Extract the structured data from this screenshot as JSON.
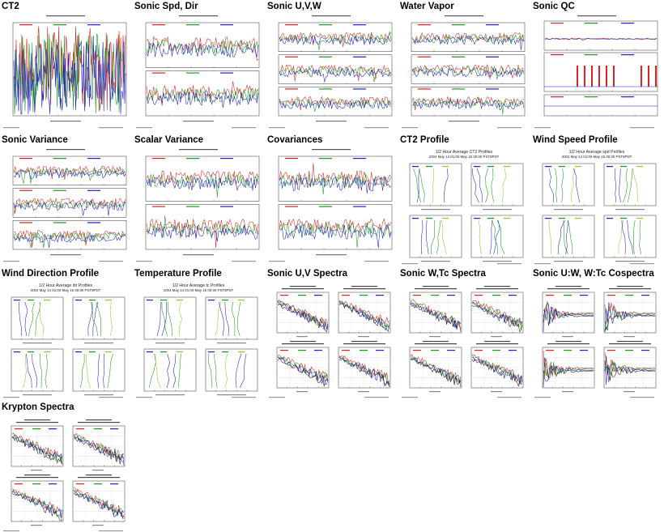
{
  "page": {
    "background": "#ffffff"
  },
  "colors": {
    "series_blue": "#1f1fcc",
    "series_green": "#1a9a1a",
    "series_red": "#dd2222",
    "series_orange": "#e0a000",
    "series_lime": "#88cc22",
    "series_black": "#222222"
  },
  "tiles": [
    {
      "title": "CT2"
    },
    {
      "title": "Sonic Spd, Dir"
    },
    {
      "title": "Sonic U,V,W"
    },
    {
      "title": "Water Vapor"
    },
    {
      "title": "Sonic QC"
    },
    {
      "title": "Sonic Variance"
    },
    {
      "title": "Scalar Variance"
    },
    {
      "title": "Covariances"
    },
    {
      "title": "CT2 Profile",
      "subtitle": "1/2 Hour Average CT2 Profiles",
      "subtitle2": "2004 May 14 01:00-May 15 00:00 PST8PDT"
    },
    {
      "title": "Wind Speed Profile",
      "subtitle": "1/2 Hour Average spd Profiles",
      "subtitle2": "2004 May 14 01:00-May 15 00:00 PST8PDT"
    },
    {
      "title": "Wind Direction Profile",
      "subtitle": "1/2 Hour Average dir Profiles",
      "subtitle2": "2004 May 14 01:00-May 15 00:00 PST8PDT"
    },
    {
      "title": "Temperature Profile",
      "subtitle": "1/2 Hour Average tc Profiles",
      "subtitle2": "2004 May 14 01:00-May 15 00:00 PST8PDT"
    },
    {
      "title": "Sonic U,V Spectra"
    },
    {
      "title": "Sonic W,Tc Spectra"
    },
    {
      "title": "Sonic U:W, W:Tc Cospectra"
    },
    {
      "title": "Krypton Spectra"
    }
  ]
}
